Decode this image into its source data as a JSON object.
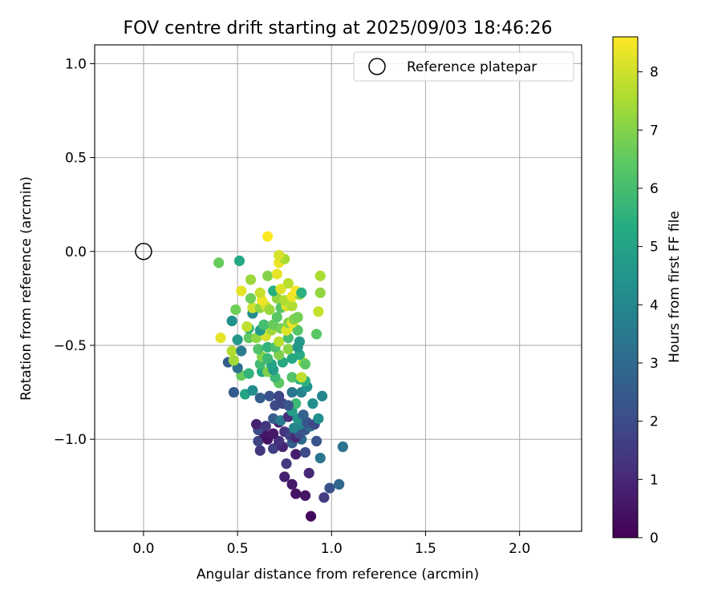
{
  "chart_data": {
    "type": "scatter",
    "title": "FOV centre drift starting at 2025/09/03 18:46:26",
    "xlabel": "Angular distance from reference (arcmin)",
    "ylabel": "Rotation from reference (arcmin)",
    "xlim": [
      -0.26,
      2.33
    ],
    "ylim": [
      -1.49,
      1.1
    ],
    "xticks": [
      0.0,
      0.5,
      1.0,
      1.5,
      2.0
    ],
    "xtick_labels": [
      "0.0",
      "0.5",
      "1.0",
      "1.5",
      "2.0"
    ],
    "yticks": [
      1.0,
      0.5,
      0.0,
      -0.5,
      -1.0
    ],
    "ytick_labels": [
      "1.0",
      "0.5",
      "0.0",
      "−0.5",
      "−1.0"
    ],
    "grid": true,
    "legend": {
      "position": "top-right",
      "entries": [
        {
          "label": "Reference platepar",
          "marker": "open-circle"
        }
      ]
    },
    "reference_point": {
      "x": 0.0,
      "y": 0.0,
      "label": "Reference platepar"
    },
    "colorbar": {
      "label": "Hours from first FF file",
      "colormap": "viridis",
      "range": [
        0,
        8.6
      ],
      "ticks": [
        0,
        1,
        2,
        3,
        4,
        5,
        6,
        7,
        8
      ],
      "tick_labels": [
        "0",
        "1",
        "2",
        "3",
        "4",
        "5",
        "6",
        "7",
        "8"
      ]
    },
    "points": [
      {
        "x": 0.89,
        "y": -1.41,
        "h": 0.2
      },
      {
        "x": 0.86,
        "y": -1.3,
        "h": 0.5
      },
      {
        "x": 0.81,
        "y": -1.29,
        "h": 0.4
      },
      {
        "x": 0.79,
        "y": -1.24,
        "h": 0.6
      },
      {
        "x": 0.75,
        "y": -1.2,
        "h": 0.8
      },
      {
        "x": 0.88,
        "y": -1.18,
        "h": 1.0
      },
      {
        "x": 0.96,
        "y": -1.31,
        "h": 1.6
      },
      {
        "x": 0.99,
        "y": -1.26,
        "h": 2.2
      },
      {
        "x": 1.04,
        "y": -1.24,
        "h": 2.9
      },
      {
        "x": 1.06,
        "y": -1.04,
        "h": 3.3
      },
      {
        "x": 0.94,
        "y": -1.1,
        "h": 3.4
      },
      {
        "x": 0.76,
        "y": -1.13,
        "h": 1.5
      },
      {
        "x": 0.81,
        "y": -1.08,
        "h": 0.7
      },
      {
        "x": 0.86,
        "y": -1.07,
        "h": 2.0
      },
      {
        "x": 0.62,
        "y": -1.06,
        "h": 1.4
      },
      {
        "x": 0.69,
        "y": -1.05,
        "h": 1.6
      },
      {
        "x": 0.74,
        "y": -1.04,
        "h": 0.9
      },
      {
        "x": 0.61,
        "y": -1.01,
        "h": 1.8
      },
      {
        "x": 0.66,
        "y": -1.0,
        "h": 0.4
      },
      {
        "x": 0.72,
        "y": -1.01,
        "h": 1.2
      },
      {
        "x": 0.79,
        "y": -1.02,
        "h": 2.5
      },
      {
        "x": 0.84,
        "y": -1.0,
        "h": 3.0
      },
      {
        "x": 0.92,
        "y": -1.01,
        "h": 2.3
      },
      {
        "x": 0.69,
        "y": -0.97,
        "h": 0.6
      },
      {
        "x": 0.64,
        "y": -0.97,
        "h": 0.5
      },
      {
        "x": 0.61,
        "y": -0.95,
        "h": 2.0
      },
      {
        "x": 0.75,
        "y": -0.96,
        "h": 1.3
      },
      {
        "x": 0.78,
        "y": -0.98,
        "h": 1.7
      },
      {
        "x": 0.81,
        "y": -0.99,
        "h": 1.0
      },
      {
        "x": 0.83,
        "y": -0.97,
        "h": 2.1
      },
      {
        "x": 0.86,
        "y": -0.95,
        "h": 2.4
      },
      {
        "x": 0.89,
        "y": -0.93,
        "h": 3.1
      },
      {
        "x": 0.6,
        "y": -0.92,
        "h": 0.8
      },
      {
        "x": 0.65,
        "y": -0.93,
        "h": 1.4
      },
      {
        "x": 0.72,
        "y": -0.91,
        "h": 0.7
      },
      {
        "x": 0.8,
        "y": -0.94,
        "h": 3.9
      },
      {
        "x": 0.83,
        "y": -0.92,
        "h": 4.0
      },
      {
        "x": 0.87,
        "y": -0.91,
        "h": 2.2
      },
      {
        "x": 0.91,
        "y": -0.92,
        "h": 1.9
      },
      {
        "x": 0.93,
        "y": -0.89,
        "h": 4.3
      },
      {
        "x": 0.69,
        "y": -0.89,
        "h": 2.6
      },
      {
        "x": 0.73,
        "y": -0.9,
        "h": 3.6
      },
      {
        "x": 0.77,
        "y": -0.88,
        "h": 1.1
      },
      {
        "x": 0.82,
        "y": -0.89,
        "h": 4.5
      },
      {
        "x": 0.85,
        "y": -0.87,
        "h": 2.8
      },
      {
        "x": 0.79,
        "y": -0.85,
        "h": 4.8
      },
      {
        "x": 0.81,
        "y": -0.81,
        "h": 5.8
      },
      {
        "x": 0.7,
        "y": -0.82,
        "h": 2.0
      },
      {
        "x": 0.74,
        "y": -0.81,
        "h": 1.8
      },
      {
        "x": 0.77,
        "y": -0.82,
        "h": 2.3
      },
      {
        "x": 0.62,
        "y": -0.78,
        "h": 2.6
      },
      {
        "x": 0.67,
        "y": -0.77,
        "h": 2.2
      },
      {
        "x": 0.72,
        "y": -0.77,
        "h": 1.9
      },
      {
        "x": 0.9,
        "y": -0.81,
        "h": 4.2
      },
      {
        "x": 0.95,
        "y": -0.77,
        "h": 4.0
      },
      {
        "x": 0.48,
        "y": -0.75,
        "h": 2.5
      },
      {
        "x": 0.54,
        "y": -0.76,
        "h": 5.0
      },
      {
        "x": 0.58,
        "y": -0.74,
        "h": 4.2
      },
      {
        "x": 0.79,
        "y": -0.75,
        "h": 3.4
      },
      {
        "x": 0.84,
        "y": -0.75,
        "h": 3.8
      },
      {
        "x": 0.87,
        "y": -0.72,
        "h": 4.4
      },
      {
        "x": 0.83,
        "y": -0.68,
        "h": 5.4
      },
      {
        "x": 0.86,
        "y": -0.69,
        "h": 5.5
      },
      {
        "x": 0.72,
        "y": -0.7,
        "h": 6.4
      },
      {
        "x": 0.79,
        "y": -0.67,
        "h": 6.2
      },
      {
        "x": 0.84,
        "y": -0.67,
        "h": 7.8
      },
      {
        "x": 0.7,
        "y": -0.67,
        "h": 5.8
      },
      {
        "x": 0.52,
        "y": -0.66,
        "h": 6.6
      },
      {
        "x": 0.56,
        "y": -0.65,
        "h": 5.6
      },
      {
        "x": 0.63,
        "y": -0.64,
        "h": 5.1
      },
      {
        "x": 0.66,
        "y": -0.64,
        "h": 6.9
      },
      {
        "x": 0.69,
        "y": -0.63,
        "h": 4.7
      },
      {
        "x": 0.5,
        "y": -0.62,
        "h": 3.2
      },
      {
        "x": 0.45,
        "y": -0.59,
        "h": 2.6
      },
      {
        "x": 0.48,
        "y": -0.58,
        "h": 7.4
      },
      {
        "x": 0.62,
        "y": -0.6,
        "h": 5.9
      },
      {
        "x": 0.68,
        "y": -0.6,
        "h": 5.0
      },
      {
        "x": 0.74,
        "y": -0.59,
        "h": 5.2
      },
      {
        "x": 0.85,
        "y": -0.59,
        "h": 7.7
      },
      {
        "x": 0.86,
        "y": -0.6,
        "h": 6.4
      },
      {
        "x": 0.63,
        "y": -0.56,
        "h": 7.0
      },
      {
        "x": 0.66,
        "y": -0.57,
        "h": 5.8
      },
      {
        "x": 0.72,
        "y": -0.55,
        "h": 6.9
      },
      {
        "x": 0.79,
        "y": -0.57,
        "h": 5.2
      },
      {
        "x": 0.83,
        "y": -0.55,
        "h": 5.3
      },
      {
        "x": 0.47,
        "y": -0.53,
        "h": 7.6
      },
      {
        "x": 0.52,
        "y": -0.53,
        "h": 3.6
      },
      {
        "x": 0.61,
        "y": -0.52,
        "h": 6.2
      },
      {
        "x": 0.66,
        "y": -0.51,
        "h": 5.6
      },
      {
        "x": 0.7,
        "y": -0.51,
        "h": 6.1
      },
      {
        "x": 0.77,
        "y": -0.52,
        "h": 7.1
      },
      {
        "x": 0.82,
        "y": -0.51,
        "h": 4.6
      },
      {
        "x": 0.41,
        "y": -0.46,
        "h": 8.3
      },
      {
        "x": 0.5,
        "y": -0.47,
        "h": 4.6
      },
      {
        "x": 0.56,
        "y": -0.46,
        "h": 6.5
      },
      {
        "x": 0.6,
        "y": -0.46,
        "h": 7.2
      },
      {
        "x": 0.65,
        "y": -0.45,
        "h": 8.1
      },
      {
        "x": 0.72,
        "y": -0.48,
        "h": 7.7
      },
      {
        "x": 0.77,
        "y": -0.46,
        "h": 6.0
      },
      {
        "x": 0.83,
        "y": -0.48,
        "h": 4.6
      },
      {
        "x": 0.92,
        "y": -0.44,
        "h": 6.4
      },
      {
        "x": 0.56,
        "y": -0.41,
        "h": 5.6
      },
      {
        "x": 0.62,
        "y": -0.42,
        "h": 4.8
      },
      {
        "x": 0.68,
        "y": -0.42,
        "h": 7.4
      },
      {
        "x": 0.73,
        "y": -0.41,
        "h": 6.8
      },
      {
        "x": 0.76,
        "y": -0.42,
        "h": 8.2
      },
      {
        "x": 0.8,
        "y": -0.4,
        "h": 8.5
      },
      {
        "x": 0.82,
        "y": -0.42,
        "h": 6.3
      },
      {
        "x": 0.55,
        "y": -0.4,
        "h": 7.8
      },
      {
        "x": 0.64,
        "y": -0.39,
        "h": 6.0
      },
      {
        "x": 0.69,
        "y": -0.39,
        "h": 6.6
      },
      {
        "x": 0.77,
        "y": -0.38,
        "h": 7.0
      },
      {
        "x": 0.79,
        "y": -0.38,
        "h": 8.3
      },
      {
        "x": 0.47,
        "y": -0.37,
        "h": 4.3
      },
      {
        "x": 0.58,
        "y": -0.33,
        "h": 4.2
      },
      {
        "x": 0.71,
        "y": -0.35,
        "h": 6.4
      },
      {
        "x": 0.8,
        "y": -0.36,
        "h": 7.0
      },
      {
        "x": 0.82,
        "y": -0.35,
        "h": 6.8
      },
      {
        "x": 0.49,
        "y": -0.31,
        "h": 6.7
      },
      {
        "x": 0.58,
        "y": -0.3,
        "h": 8.0
      },
      {
        "x": 0.62,
        "y": -0.3,
        "h": 7.1
      },
      {
        "x": 0.65,
        "y": -0.29,
        "h": 8.0
      },
      {
        "x": 0.67,
        "y": -0.31,
        "h": 7.3
      },
      {
        "x": 0.73,
        "y": -0.3,
        "h": 6.3
      },
      {
        "x": 0.76,
        "y": -0.29,
        "h": 8.1
      },
      {
        "x": 0.79,
        "y": -0.29,
        "h": 7.6
      },
      {
        "x": 0.93,
        "y": -0.32,
        "h": 7.9
      },
      {
        "x": 0.57,
        "y": -0.25,
        "h": 6.7
      },
      {
        "x": 0.63,
        "y": -0.26,
        "h": 8.4
      },
      {
        "x": 0.71,
        "y": -0.25,
        "h": 7.2
      },
      {
        "x": 0.75,
        "y": -0.26,
        "h": 7.6
      },
      {
        "x": 0.79,
        "y": -0.24,
        "h": 8.4
      },
      {
        "x": 0.83,
        "y": -0.23,
        "h": 7.2
      },
      {
        "x": 0.52,
        "y": -0.21,
        "h": 8.3
      },
      {
        "x": 0.62,
        "y": -0.22,
        "h": 7.9
      },
      {
        "x": 0.69,
        "y": -0.21,
        "h": 5.4
      },
      {
        "x": 0.73,
        "y": -0.2,
        "h": 8.2
      },
      {
        "x": 0.81,
        "y": -0.21,
        "h": 8.5
      },
      {
        "x": 0.84,
        "y": -0.22,
        "h": 5.5
      },
      {
        "x": 0.94,
        "y": -0.22,
        "h": 7.2
      },
      {
        "x": 0.77,
        "y": -0.17,
        "h": 7.7
      },
      {
        "x": 0.57,
        "y": -0.15,
        "h": 7.3
      },
      {
        "x": 0.66,
        "y": -0.13,
        "h": 7.0
      },
      {
        "x": 0.71,
        "y": -0.12,
        "h": 8.3
      },
      {
        "x": 0.94,
        "y": -0.13,
        "h": 7.5
      },
      {
        "x": 0.4,
        "y": -0.06,
        "h": 6.6
      },
      {
        "x": 0.51,
        "y": -0.05,
        "h": 5.2
      },
      {
        "x": 0.72,
        "y": -0.06,
        "h": 8.4
      },
      {
        "x": 0.75,
        "y": -0.04,
        "h": 7.5
      },
      {
        "x": 0.72,
        "y": -0.02,
        "h": 8.1
      },
      {
        "x": 0.66,
        "y": 0.08,
        "h": 8.6
      }
    ]
  }
}
